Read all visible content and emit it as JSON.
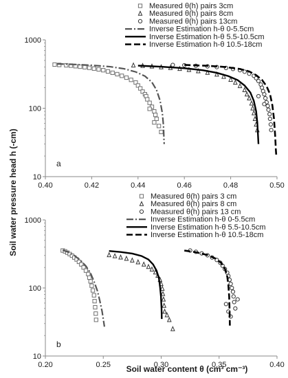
{
  "chart_data": [
    {
      "type": "scatter",
      "panel_label": "a",
      "xlim": [
        0.4,
        0.5
      ],
      "ylim": [
        10,
        1000
      ],
      "yscale": "log",
      "x_ticks": [
        "0.40",
        "0.42",
        "0.44",
        "0.46",
        "0.48",
        "0.50"
      ],
      "y_ticks": [
        "10",
        "100",
        "1000"
      ],
      "legend": [
        "Measured θ(h) pairs 3cm",
        "Measured θ(h) pairs 8cm",
        "Measured θ(h) pairs 13cm",
        "Inverse Estimation h-θ 0-5.5cm",
        "Inverse Estimation h-θ 5.5-10.5cm",
        "Inverse Estimation h-θ 10.5-18cm"
      ],
      "series": [
        {
          "name": "Measured θ(h) pairs 3cm",
          "kind": "points",
          "marker": "square",
          "points": [
            [
              0.404,
              435
            ],
            [
              0.406,
              430
            ],
            [
              0.409,
              425
            ],
            [
              0.411,
              420
            ],
            [
              0.413,
              412
            ],
            [
              0.415,
              405
            ],
            [
              0.417,
              398
            ],
            [
              0.419,
              390
            ],
            [
              0.421,
              380
            ],
            [
              0.423,
              370
            ],
            [
              0.425,
              360
            ],
            [
              0.427,
              345
            ],
            [
              0.429,
              330
            ],
            [
              0.431,
              315
            ],
            [
              0.433,
              298
            ],
            [
              0.435,
              280
            ],
            [
              0.437,
              260
            ],
            [
              0.439,
              238
            ],
            [
              0.44,
              215
            ],
            [
              0.441,
              195
            ],
            [
              0.442,
              175
            ],
            [
              0.443,
              160
            ],
            [
              0.4435,
              150
            ],
            [
              0.444,
              135
            ],
            [
              0.445,
              120
            ],
            [
              0.446,
              105
            ],
            [
              0.447,
              90
            ],
            [
              0.4475,
              80
            ],
            [
              0.448,
              70
            ],
            [
              0.449,
              55
            ],
            [
              0.45,
              45
            ],
            [
              0.445,
              98
            ],
            [
              0.447,
              62
            ]
          ]
        },
        {
          "name": "Measured θ(h) pairs 8cm",
          "kind": "points",
          "marker": "triangle",
          "points": [
            [
              0.438,
              425
            ],
            [
              0.442,
              418
            ],
            [
              0.446,
              410
            ],
            [
              0.45,
              400
            ],
            [
              0.454,
              390
            ],
            [
              0.458,
              378
            ],
            [
              0.462,
              365
            ],
            [
              0.466,
              350
            ],
            [
              0.47,
              332
            ],
            [
              0.474,
              312
            ],
            [
              0.477,
              290
            ],
            [
              0.48,
              262
            ],
            [
              0.482,
              238
            ],
            [
              0.484,
              212
            ],
            [
              0.486,
              185
            ],
            [
              0.487,
              160
            ],
            [
              0.488,
              140
            ],
            [
              0.489,
              118
            ],
            [
              0.4895,
              100
            ],
            [
              0.49,
              85
            ],
            [
              0.4905,
              70
            ],
            [
              0.491,
              58
            ],
            [
              0.4915,
              48
            ]
          ]
        },
        {
          "name": "Measured θ(h) pairs 13cm",
          "kind": "points",
          "marker": "circle",
          "points": [
            [
              0.455,
              430
            ],
            [
              0.46,
              425
            ],
            [
              0.465,
              418
            ],
            [
              0.47,
              410
            ],
            [
              0.474,
              400
            ],
            [
              0.478,
              388
            ],
            [
              0.481,
              375
            ],
            [
              0.484,
              360
            ],
            [
              0.486,
              342
            ],
            [
              0.488,
              320
            ],
            [
              0.49,
              298
            ],
            [
              0.491,
              275
            ],
            [
              0.492,
              250
            ],
            [
              0.493,
              222
            ],
            [
              0.4935,
              200
            ],
            [
              0.494,
              178
            ],
            [
              0.4945,
              160
            ],
            [
              0.495,
              140
            ],
            [
              0.4955,
              122
            ],
            [
              0.496,
              108
            ],
            [
              0.4963,
              95
            ],
            [
              0.4968,
              82
            ],
            [
              0.497,
              70
            ],
            [
              0.4973,
              58
            ],
            [
              0.4975,
              48
            ],
            [
              0.492,
              150
            ],
            [
              0.4945,
              115
            ]
          ]
        },
        {
          "name": "Inverse Estimation h-θ 0-5.5cm",
          "kind": "line",
          "dash": "10,3,2,3",
          "width": 2.2,
          "points": [
            [
              0.405,
              445
            ],
            [
              0.412,
              438
            ],
            [
              0.42,
              425
            ],
            [
              0.428,
              405
            ],
            [
              0.434,
              378
            ],
            [
              0.439,
              340
            ],
            [
              0.443,
              295
            ],
            [
              0.446,
              240
            ],
            [
              0.448,
              185
            ],
            [
              0.4495,
              130
            ],
            [
              0.4505,
              85
            ],
            [
              0.451,
              55
            ],
            [
              0.4512,
              35
            ],
            [
              0.4513,
              30
            ]
          ]
        },
        {
          "name": "Inverse Estimation h-θ 5.5-10.5cm",
          "kind": "line",
          "dash": "",
          "width": 2.4,
          "points": [
            [
              0.44,
              420
            ],
            [
              0.45,
              405
            ],
            [
              0.46,
              385
            ],
            [
              0.468,
              360
            ],
            [
              0.474,
              330
            ],
            [
              0.479,
              295
            ],
            [
              0.483,
              258
            ],
            [
              0.486,
              215
            ],
            [
              0.4885,
              170
            ],
            [
              0.49,
              128
            ],
            [
              0.491,
              90
            ],
            [
              0.4915,
              62
            ],
            [
              0.4918,
              40
            ],
            [
              0.492,
              30
            ]
          ]
        },
        {
          "name": "Inverse Estimation h-θ 10.5-18cm",
          "kind": "line",
          "dash": "9,4",
          "width": 2.6,
          "points": [
            [
              0.46,
              430
            ],
            [
              0.47,
              418
            ],
            [
              0.478,
              400
            ],
            [
              0.484,
              375
            ],
            [
              0.488,
              345
            ],
            [
              0.491,
              305
            ],
            [
              0.4935,
              260
            ],
            [
              0.4955,
              210
            ],
            [
              0.497,
              160
            ],
            [
              0.498,
              110
            ],
            [
              0.4987,
              70
            ],
            [
              0.4992,
              40
            ],
            [
              0.4995,
              25
            ],
            [
              0.4997,
              20
            ]
          ]
        }
      ]
    },
    {
      "type": "scatter",
      "panel_label": "b",
      "xlim": [
        0.2,
        0.4
      ],
      "ylim": [
        10,
        1000
      ],
      "yscale": "log",
      "x_ticks": [
        "0.20",
        "0.25",
        "0.30",
        "0.35",
        "0.40"
      ],
      "y_ticks": [
        "10",
        "100",
        "1000"
      ],
      "legend": [
        "Measured θ(h) pairs 3 cm",
        "Measured θ(h) pairs 8 cm",
        "Measured θ(h) pairs 13 cm",
        "Inverse Estimation h-θ 0-5.5cm",
        "Inverse Estimation h-θ 5.5-10.5cm",
        "Inverse Estimation h-θ 10.5-18cm"
      ],
      "series": [
        {
          "name": "Measured θ(h) pairs 3 cm",
          "kind": "points",
          "marker": "square",
          "points": [
            [
              0.215,
              355
            ],
            [
              0.217,
              345
            ],
            [
              0.219,
              330
            ],
            [
              0.221,
              315
            ],
            [
              0.223,
              298
            ],
            [
              0.225,
              280
            ],
            [
              0.227,
              262
            ],
            [
              0.229,
              242
            ],
            [
              0.231,
              222
            ],
            [
              0.233,
              200
            ],
            [
              0.235,
              180
            ],
            [
              0.237,
              160
            ],
            [
              0.238,
              142
            ],
            [
              0.239,
              125
            ],
            [
              0.24,
              108
            ],
            [
              0.241,
              92
            ],
            [
              0.242,
              78
            ],
            [
              0.2425,
              64
            ],
            [
              0.243,
              52
            ],
            [
              0.2435,
              42
            ],
            [
              0.2438,
              34
            ]
          ]
        },
        {
          "name": "Measured θ(h) pairs 8 cm",
          "kind": "points",
          "marker": "triangle",
          "points": [
            [
              0.255,
              305
            ],
            [
              0.26,
              295
            ],
            [
              0.265,
              282
            ],
            [
              0.27,
              270
            ],
            [
              0.275,
              255
            ],
            [
              0.28,
              240
            ],
            [
              0.285,
              222
            ],
            [
              0.289,
              205
            ],
            [
              0.292,
              188
            ],
            [
              0.295,
              170
            ],
            [
              0.297,
              152
            ],
            [
              0.299,
              132
            ],
            [
              0.3,
              115
            ],
            [
              0.301,
              98
            ],
            [
              0.3015,
              82
            ],
            [
              0.302,
              68
            ],
            [
              0.3025,
              55
            ],
            [
              0.303,
              45
            ],
            [
              0.305,
              40
            ],
            [
              0.307,
              34
            ],
            [
              0.31,
              25
            ]
          ]
        },
        {
          "name": "Measured θ(h) pairs 13 cm",
          "kind": "points",
          "marker": "circle",
          "points": [
            [
              0.325,
              355
            ],
            [
              0.33,
              340
            ],
            [
              0.335,
              322
            ],
            [
              0.34,
              302
            ],
            [
              0.344,
              280
            ],
            [
              0.348,
              258
            ],
            [
              0.351,
              235
            ],
            [
              0.353,
              212
            ],
            [
              0.355,
              190
            ],
            [
              0.357,
              168
            ],
            [
              0.358,
              150
            ],
            [
              0.359,
              132
            ],
            [
              0.36,
              115
            ],
            [
              0.361,
              100
            ],
            [
              0.362,
              88
            ],
            [
              0.3625,
              75
            ],
            [
              0.363,
              62
            ],
            [
              0.364,
              50
            ],
            [
              0.356,
              58
            ],
            [
              0.358,
              45
            ],
            [
              0.36,
              38
            ],
            [
              0.366,
              68
            ]
          ]
        },
        {
          "name": "Inverse Estimation h-θ 0-5.5cm",
          "kind": "line",
          "dash": "10,3,2,3",
          "width": 2.2,
          "points": [
            [
              0.215,
              360
            ],
            [
              0.22,
              335
            ],
            [
              0.225,
              300
            ],
            [
              0.23,
              258
            ],
            [
              0.235,
              210
            ],
            [
              0.239,
              165
            ],
            [
              0.242,
              125
            ],
            [
              0.245,
              90
            ],
            [
              0.247,
              65
            ],
            [
              0.249,
              45
            ],
            [
              0.25,
              35
            ],
            [
              0.251,
              27
            ]
          ]
        },
        {
          "name": "Inverse Estimation h-θ 5.5-10.5cm",
          "kind": "line",
          "dash": "",
          "width": 2.4,
          "points": [
            [
              0.255,
              350
            ],
            [
              0.265,
              338
            ],
            [
              0.275,
              320
            ],
            [
              0.283,
              295
            ],
            [
              0.289,
              262
            ],
            [
              0.293,
              222
            ],
            [
              0.296,
              180
            ],
            [
              0.298,
              140
            ],
            [
              0.299,
              105
            ],
            [
              0.2998,
              75
            ],
            [
              0.3003,
              50
            ],
            [
              0.3005,
              35
            ]
          ]
        },
        {
          "name": "Inverse Estimation h-θ 10.5-18cm",
          "kind": "line",
          "dash": "9,4",
          "width": 2.6,
          "points": [
            [
              0.32,
              355
            ],
            [
              0.33,
              335
            ],
            [
              0.34,
              305
            ],
            [
              0.347,
              270
            ],
            [
              0.352,
              232
            ],
            [
              0.355,
              192
            ],
            [
              0.357,
              150
            ],
            [
              0.358,
              110
            ],
            [
              0.3587,
              75
            ],
            [
              0.359,
              50
            ],
            [
              0.3592,
              35
            ],
            [
              0.3593,
              28
            ]
          ]
        }
      ]
    }
  ],
  "axes_labels": {
    "ylabel": "Soil water pressure head h (-cm)",
    "xlabel": "Soil water content θ (cm³ cm⁻³)"
  }
}
